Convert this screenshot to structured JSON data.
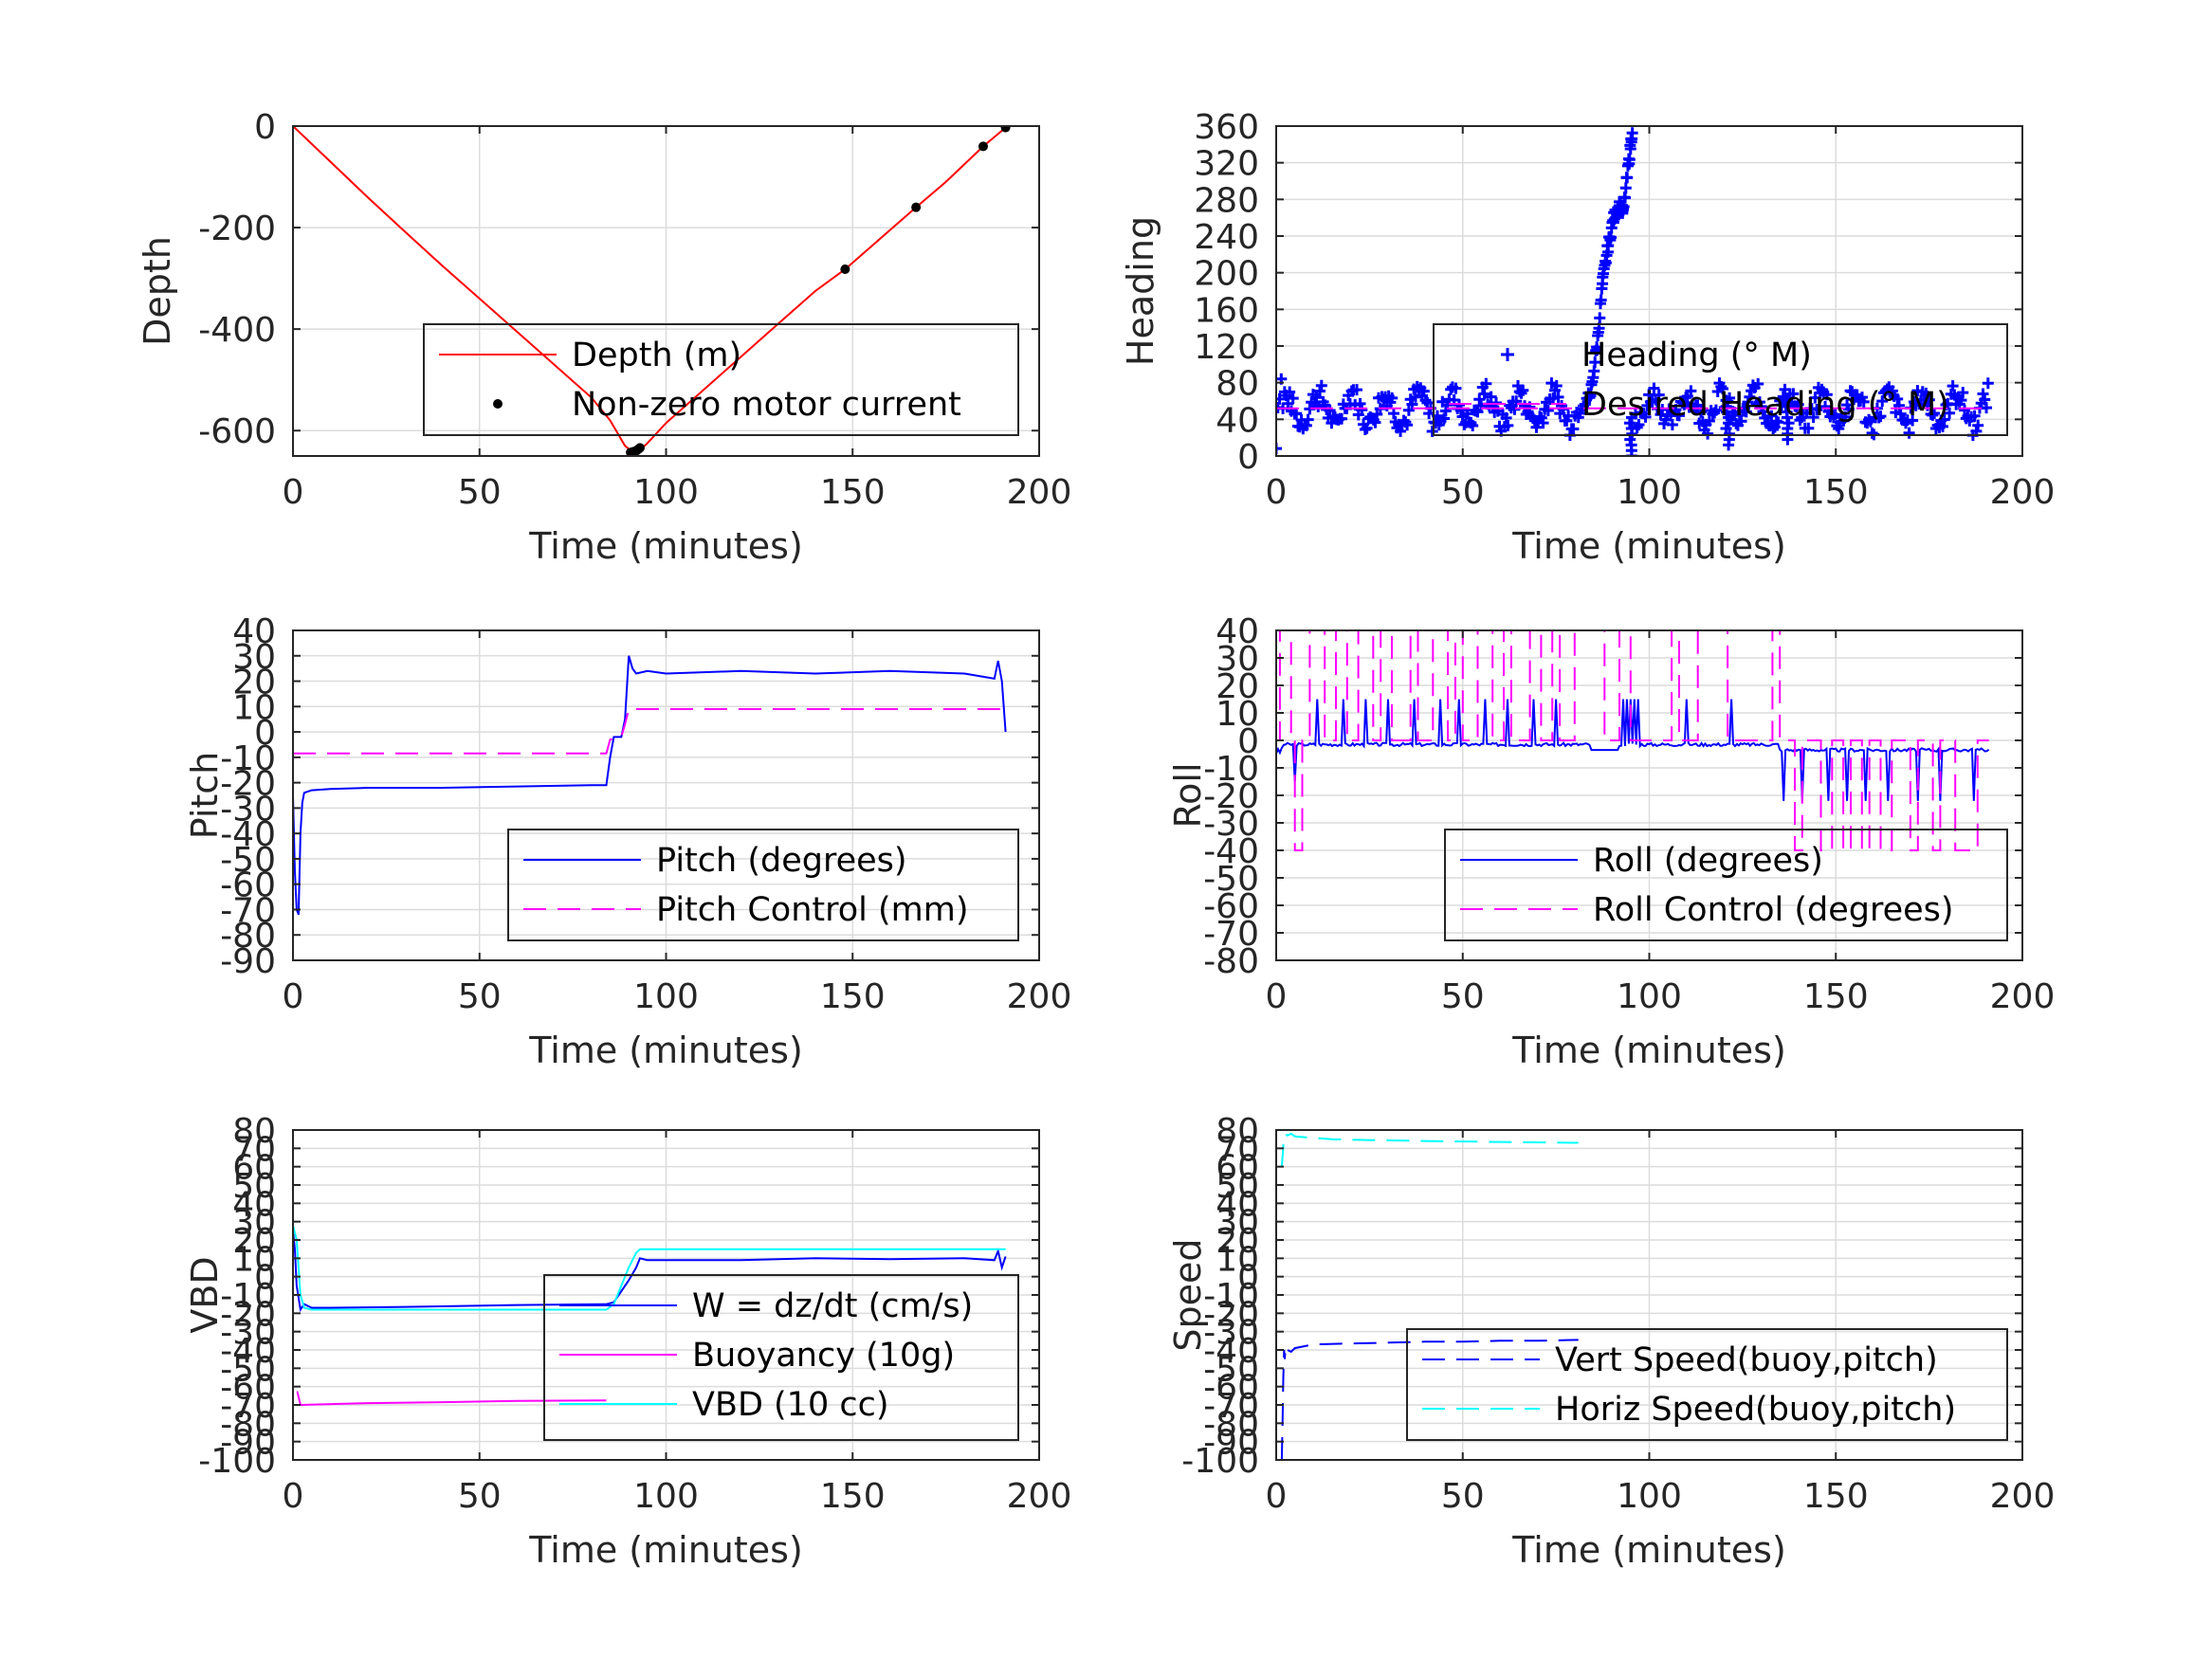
{
  "figure": {
    "background": "#ffffff",
    "grid_color": "#dcdcdc",
    "axis_color": "#262626"
  },
  "chart_data": [
    {
      "type": "line",
      "xlabel": "Time (minutes)",
      "ylabel": "Depth",
      "xlim": [
        0,
        200
      ],
      "ylim": [
        -650,
        0
      ],
      "xticks": [
        0,
        50,
        100,
        150,
        200
      ],
      "yticks": [
        0,
        -200,
        -400,
        -600
      ],
      "grid": true,
      "legend": "bottom-right",
      "series": [
        {
          "name": "Depth (m)",
          "style": "solid",
          "color": "#ff0000",
          "x": [
            0,
            10,
            20,
            30,
            40,
            50,
            60,
            70,
            80,
            85,
            89,
            91,
            93,
            95,
            100,
            110,
            120,
            130,
            140,
            148,
            160,
            167,
            175,
            185,
            191
          ],
          "y": [
            0,
            -70,
            -140,
            -208,
            -275,
            -340,
            -405,
            -470,
            -535,
            -580,
            -630,
            -642,
            -638,
            -625,
            -585,
            -520,
            -455,
            -390,
            -325,
            -282,
            -205,
            -160,
            -110,
            -40,
            -3
          ]
        },
        {
          "name": "Non-zero motor current",
          "style": "dots",
          "color": "#000000",
          "x": [
            90.5,
            91,
            91.5,
            92,
            92.5,
            93,
            148,
            167,
            185,
            191
          ],
          "y": [
            -643,
            -642,
            -641,
            -640,
            -637,
            -634,
            -282,
            -160,
            -40,
            -3
          ]
        }
      ]
    },
    {
      "type": "scatter",
      "xlabel": "Time (minutes)",
      "ylabel": "Heading",
      "xlim": [
        0,
        200
      ],
      "ylim": [
        0,
        360
      ],
      "xticks": [
        0,
        50,
        100,
        150,
        200
      ],
      "yticks": [
        0,
        40,
        80,
        120,
        160,
        200,
        240,
        280,
        320,
        360
      ],
      "grid": true,
      "legend": "bottom-right",
      "series": [
        {
          "name": "Heading (° M)",
          "style": "plus",
          "color": "#0000ff",
          "base": 52,
          "amplitude": 20,
          "period_min": 9,
          "outlier_max": 95,
          "turn_x": [
            84,
            86,
            87.5,
            89,
            90.5,
            92,
            93,
            94.5,
            95.5
          ],
          "turn_y": [
            60,
            120,
            190,
            230,
            260,
            275,
            265,
            320,
            358
          ],
          "dip_x": [
            95,
            121,
            137
          ],
          "dip_y": [
            0,
            12,
            18
          ]
        },
        {
          "name": "Desired Heading (° M)",
          "style": "dashed",
          "color": "#ff00ff",
          "x": [
            0,
            191
          ],
          "y": [
            52,
            52
          ]
        }
      ]
    },
    {
      "type": "line",
      "xlabel": "Time (minutes)",
      "ylabel": "Pitch",
      "xlim": [
        0,
        200
      ],
      "ylim": [
        -90,
        40
      ],
      "xticks": [
        0,
        50,
        100,
        150,
        200
      ],
      "yticks": [
        40,
        30,
        20,
        10,
        0,
        -10,
        -20,
        -30,
        -40,
        -50,
        -60,
        -70,
        -80,
        -90
      ],
      "grid": true,
      "legend": "bottom-right",
      "series": [
        {
          "name": "Pitch (degrees)",
          "style": "solid",
          "color": "#0000ff",
          "x": [
            0,
            0.5,
            1,
            1.5,
            2,
            2.5,
            3,
            5,
            10,
            20,
            40,
            60,
            80,
            84,
            85,
            86,
            88,
            89,
            90,
            91,
            92,
            95,
            100,
            120,
            140,
            160,
            180,
            188,
            189,
            190,
            191
          ],
          "y": [
            -25,
            -55,
            -70,
            -72,
            -40,
            -28,
            -24,
            -23,
            -22.5,
            -22,
            -22,
            -21.5,
            -21,
            -21,
            -10,
            -2,
            -2,
            5,
            30,
            25,
            23,
            24,
            23,
            24,
            23,
            24,
            23,
            21,
            28,
            20,
            0
          ]
        },
        {
          "name": "Pitch Control (mm)",
          "style": "dashed",
          "color": "#ff00ff",
          "x": [
            0,
            84,
            85,
            88,
            89,
            90,
            91,
            191
          ],
          "y": [
            -8.5,
            -8.5,
            -3,
            -2,
            3,
            9,
            9,
            9
          ]
        }
      ]
    },
    {
      "type": "line",
      "xlabel": "Time (minutes)",
      "ylabel": "Roll",
      "xlim": [
        0,
        200
      ],
      "ylim": [
        -80,
        40
      ],
      "xticks": [
        0,
        50,
        100,
        150,
        200
      ],
      "yticks": [
        40,
        30,
        20,
        10,
        0,
        -10,
        -20,
        -30,
        -40,
        -50,
        -60,
        -70,
        -80
      ],
      "grid": true,
      "legend": "bottom-right",
      "series": [
        {
          "name": "Roll (degrees)",
          "style": "solid",
          "color": "#0000ff",
          "phase1": -1.5,
          "phase2": -3.5,
          "spikes_up": [
            11,
            18,
            24,
            30,
            37,
            44,
            49,
            56,
            62,
            69,
            75,
            93,
            94,
            95,
            96,
            97,
            110,
            122
          ],
          "spikes_down": [
            5,
            136,
            141,
            148,
            153,
            158,
            164,
            172,
            178,
            187
          ]
        },
        {
          "name": "Roll Control (degrees)",
          "style": "dashed",
          "color": "#ff00ff",
          "neutral": 0,
          "high": 40,
          "low": -40,
          "high_windows": [
            [
              1,
              4
            ],
            [
              9,
              13
            ],
            [
              16,
              19
            ],
            [
              22,
              26
            ],
            [
              28,
              31
            ],
            [
              36,
              38
            ],
            [
              42,
              46
            ],
            [
              48,
              50
            ],
            [
              54,
              58
            ],
            [
              61,
              63
            ],
            [
              68,
              71
            ],
            [
              74,
              76
            ],
            [
              80,
              88
            ],
            [
              92,
              95
            ],
            [
              106,
              108
            ],
            [
              113,
              121
            ],
            [
              133,
              135
            ]
          ],
          "low_windows": [
            [
              5,
              7
            ],
            [
              139,
              141
            ],
            [
              146,
              149
            ],
            [
              152,
              154
            ],
            [
              157,
              159
            ],
            [
              162,
              165
            ],
            [
              170,
              172
            ],
            [
              176,
              178
            ],
            [
              182,
              188
            ]
          ]
        }
      ]
    },
    {
      "type": "line",
      "xlabel": "Time (minutes)",
      "ylabel": "VBD",
      "xlim": [
        0,
        200
      ],
      "ylim": [
        -100,
        80
      ],
      "xticks": [
        0,
        50,
        100,
        150,
        200
      ],
      "yticks": [
        80,
        70,
        60,
        50,
        40,
        30,
        20,
        10,
        0,
        -10,
        -20,
        -30,
        -40,
        -50,
        -60,
        -70,
        -80,
        -90,
        -100
      ],
      "grid": true,
      "legend": "bottom-right",
      "series": [
        {
          "name": "W = dz/dt (cm/s)",
          "style": "solid",
          "color": "#0000ff",
          "x": [
            0,
            0.5,
            1,
            2,
            3,
            5,
            10,
            30,
            60,
            84,
            86,
            88,
            90,
            92,
            93,
            95,
            100,
            120,
            140,
            160,
            180,
            188,
            189,
            190,
            191
          ],
          "y": [
            25,
            15,
            -5,
            -18,
            -15,
            -17,
            -17,
            -16.5,
            -15.5,
            -15,
            -14,
            -8,
            -2,
            5,
            10,
            9,
            9,
            9,
            10,
            9.5,
            10,
            9,
            14,
            5,
            11
          ]
        },
        {
          "name": "Buoyancy (10g)",
          "style": "solid",
          "color": "#ff00ff",
          "x": [
            1,
            1.2,
            2,
            20,
            40,
            60,
            84
          ],
          "y": [
            -63,
            -63,
            -70,
            -69,
            -68.5,
            -67.8,
            -67.5
          ]
        },
        {
          "name": "VBD (10 cc)",
          "style": "solid",
          "color": "#00ffff",
          "x": [
            0,
            1,
            2,
            3,
            5,
            20,
            40,
            60,
            84,
            86,
            88,
            90,
            92,
            93,
            95,
            120,
            150,
            191
          ],
          "y": [
            28,
            20,
            -10,
            -17,
            -18,
            -18,
            -18,
            -18,
            -18,
            -15,
            -5,
            5,
            13,
            15,
            15,
            15,
            15,
            15
          ]
        }
      ]
    },
    {
      "type": "line",
      "xlabel": "Time (minutes)",
      "ylabel": "Speed",
      "xlim": [
        0,
        200
      ],
      "ylim": [
        -100,
        80
      ],
      "xticks": [
        0,
        50,
        100,
        150,
        200
      ],
      "yticks": [
        80,
        70,
        60,
        50,
        40,
        30,
        20,
        10,
        0,
        -10,
        -20,
        -30,
        -40,
        -50,
        -60,
        -70,
        -80,
        -90,
        -100
      ],
      "grid": true,
      "legend": "bottom-right",
      "series": [
        {
          "name": "Vert Speed(buoy,pitch)",
          "style": "dashed",
          "color": "#0000ff",
          "x": [
            1.5,
            1.7,
            1.9,
            2.1,
            2.3,
            2.5,
            3,
            4,
            5,
            10,
            20,
            30,
            40,
            50,
            60,
            70,
            81
          ],
          "y": [
            -100,
            -80,
            -55,
            -40,
            -45,
            -38,
            -40,
            -41,
            -39,
            -37,
            -36.5,
            -36,
            -35.5,
            -35.5,
            -35,
            -35,
            -34.5
          ]
        },
        {
          "name": "Horiz Speed(buoy,pitch)",
          "style": "dashed",
          "color": "#00ffff",
          "x": [
            1.5,
            1.8,
            2,
            2.5,
            3,
            4,
            5,
            8,
            15,
            25,
            40,
            60,
            81
          ],
          "y": [
            60,
            68,
            75,
            78,
            77,
            78,
            76.5,
            76,
            75,
            74.5,
            74,
            73.5,
            73
          ]
        }
      ]
    }
  ]
}
